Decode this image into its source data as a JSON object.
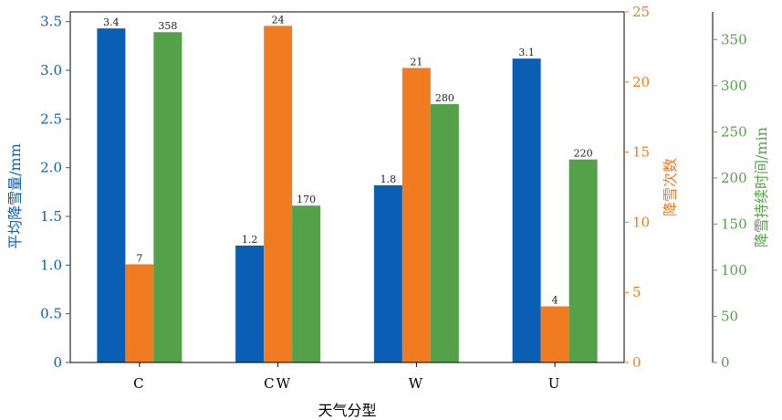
{
  "chart_data": {
    "type": "bar",
    "title": "",
    "xlabel": "天气分型",
    "categories": [
      "C",
      "CW",
      "W",
      "U"
    ],
    "axes": [
      {
        "id": "left",
        "label": "平均降雪量/mm",
        "range": [
          0,
          3.6
        ],
        "ticks": [
          "0",
          "0.5",
          "1.0",
          "1.5",
          "2.0",
          "2.5",
          "3.0",
          "3.5"
        ],
        "tick_values": [
          0,
          0.5,
          1.0,
          1.5,
          2.0,
          2.5,
          3.0,
          3.5
        ],
        "color": "#0a5fb4"
      },
      {
        "id": "right1",
        "label": "降雪次数",
        "range": [
          0,
          25
        ],
        "ticks": [
          "0",
          "5",
          "10",
          "15",
          "20",
          "25"
        ],
        "tick_values": [
          0,
          5,
          10,
          15,
          20,
          25
        ],
        "color": "#f17b20"
      },
      {
        "id": "right2",
        "label": "降雪持续时间/min",
        "range": [
          0,
          380
        ],
        "ticks": [
          "0",
          "50",
          "100",
          "150",
          "200",
          "250",
          "300",
          "350"
        ],
        "tick_values": [
          0,
          50,
          100,
          150,
          200,
          250,
          300,
          350
        ],
        "color": "#54a149"
      }
    ],
    "series": [
      {
        "axis": "left",
        "color": "#0a5fb4",
        "values": [
          3.43,
          1.2,
          1.82,
          3.12
        ],
        "labels": [
          "3.4",
          "1.2",
          "1.8",
          "3.1"
        ]
      },
      {
        "axis": "right1",
        "color": "#f17b20",
        "values": [
          7,
          24,
          21,
          4
        ],
        "labels": [
          "7",
          "24",
          "21",
          "4"
        ]
      },
      {
        "axis": "right2",
        "color": "#54a149",
        "values": [
          358,
          170,
          280,
          220
        ],
        "labels": [
          "358",
          "170",
          "280",
          "220"
        ]
      }
    ],
    "grid": false,
    "legend": "none"
  }
}
